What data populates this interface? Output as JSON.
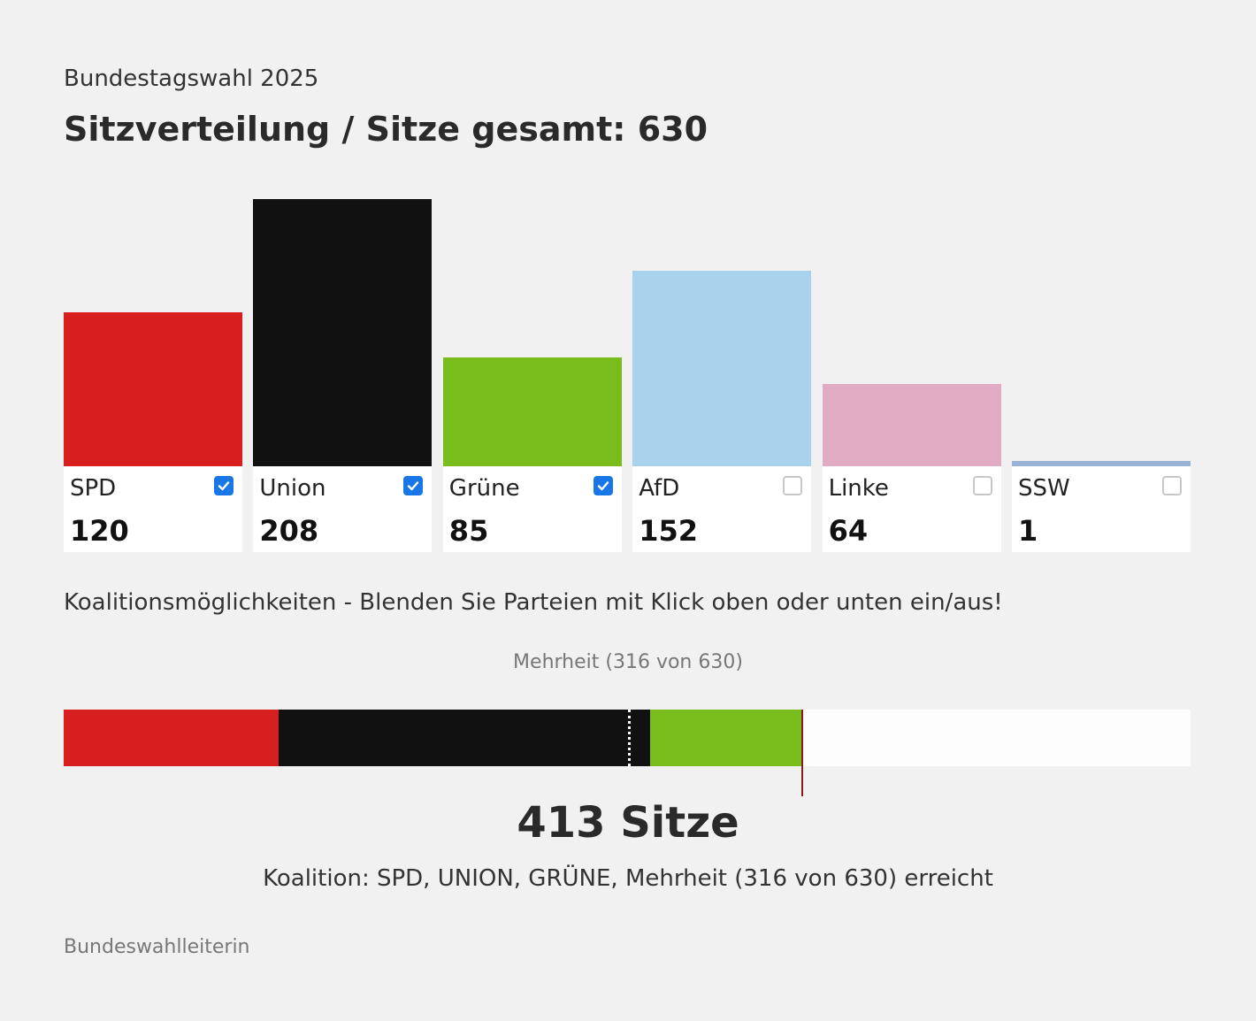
{
  "header": {
    "kicker": "Bundestagswahl 2025",
    "title": "Sitzverteilung / Sitze gesamt: 630"
  },
  "chart_data": {
    "type": "bar",
    "categories": [
      "SPD",
      "Union",
      "Grüne",
      "AfD",
      "Linke",
      "SSW"
    ],
    "values": [
      120,
      208,
      85,
      152,
      64,
      1
    ],
    "colors": [
      "#d71f1f",
      "#111111",
      "#78bd1b",
      "#a9d2ec",
      "#e2abc4",
      "#9ab2d8"
    ],
    "selected": [
      true,
      true,
      true,
      false,
      false,
      false
    ],
    "total_seats": 630,
    "majority": 316
  },
  "hint": "Koalitionsmöglichkeiten - Blenden Sie Parteien mit Klick oben oder unten ein/aus!",
  "coalition": {
    "majority_label": "Mehrheit (316 von 630)",
    "total_label": "413 Sitze",
    "status_label": "Koalition: SPD, UNION, GRÜNE, Mehrheit (316 von 630) erreicht"
  },
  "source": "Bundeswahlleiterin"
}
